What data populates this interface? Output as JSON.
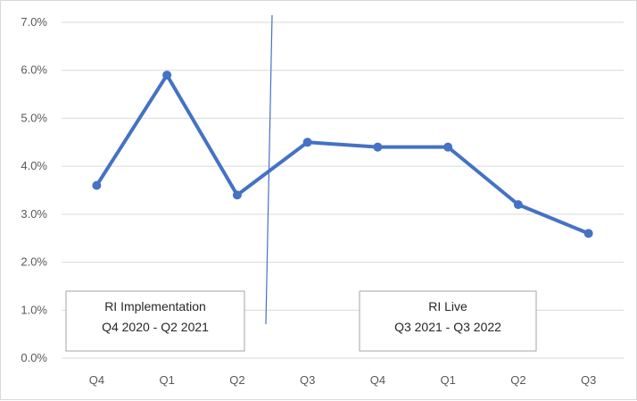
{
  "chart_data": {
    "type": "line",
    "categories": [
      "Q4",
      "Q1",
      "Q2",
      "Q3",
      "Q4",
      "Q1",
      "Q2",
      "Q3"
    ],
    "series": [
      {
        "values": [
          3.6,
          5.9,
          3.4,
          4.5,
          4.4,
          4.4,
          3.2,
          2.6
        ],
        "color": "#4472c4"
      }
    ],
    "ylim": [
      0,
      7
    ],
    "y_ticks": [
      "0.0%",
      "1.0%",
      "2.0%",
      "3.0%",
      "4.0%",
      "5.0%",
      "6.0%",
      "7.0%"
    ],
    "grid": true,
    "divider_after_category_index": 2,
    "annotations": [
      {
        "line1": "RI Implementation",
        "line2": "Q4 2020 - Q2 2021"
      },
      {
        "line1": "RI Live",
        "line2": "Q3 2021 - Q3 2022"
      }
    ],
    "colors": {
      "line": "#4472c4",
      "grid": "#d9d9d9",
      "divider": "#4472c4"
    }
  }
}
